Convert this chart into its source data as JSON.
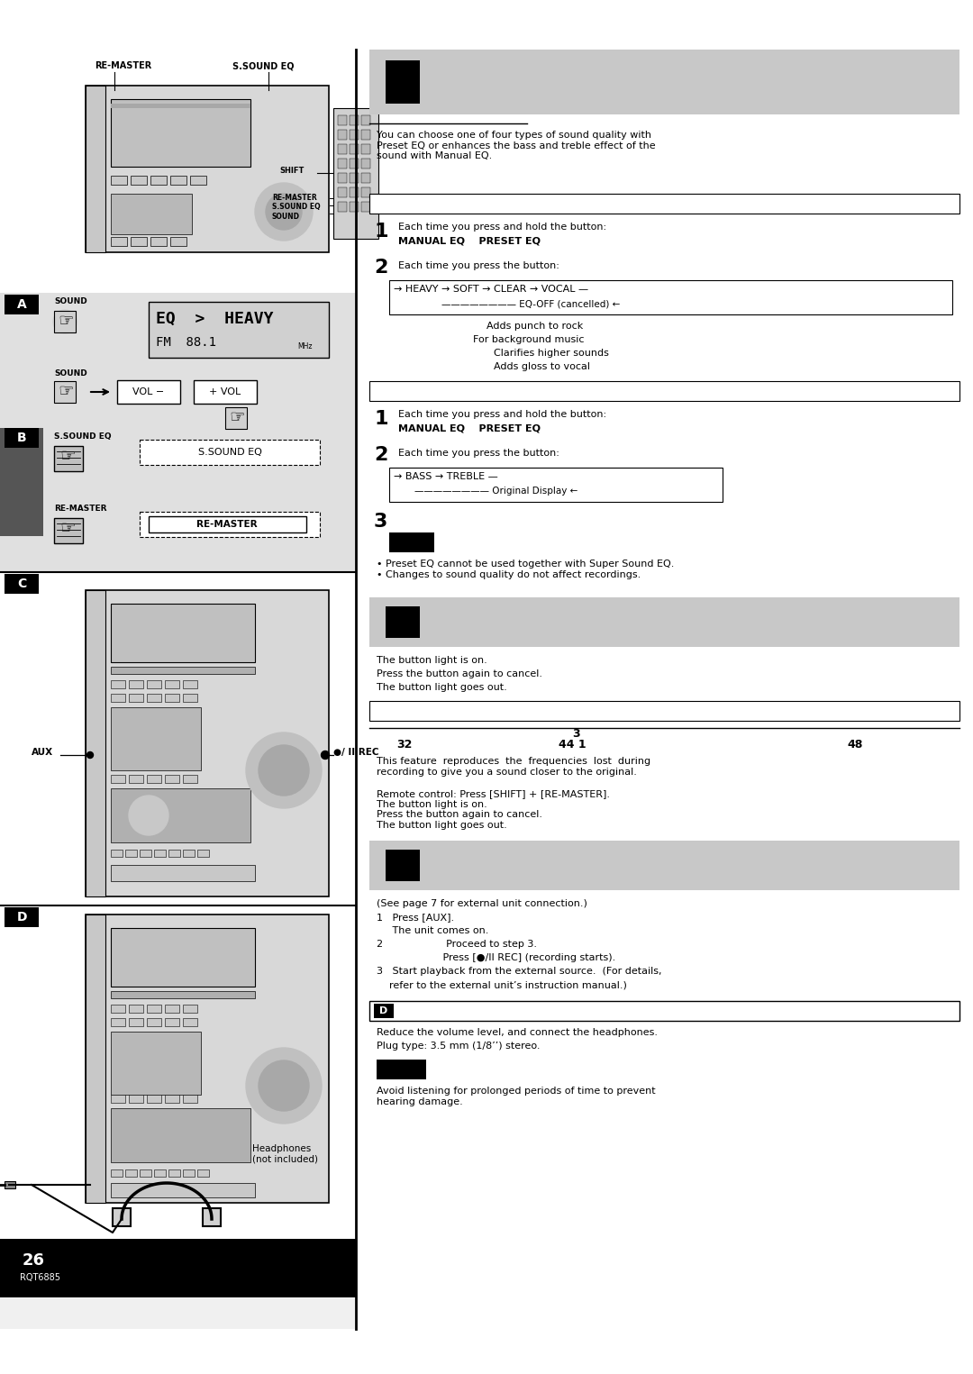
{
  "page_bg": "#ffffff",
  "left_col_bg": "#e0e0e0",
  "section_A_bg": "#e0e0e0",
  "section_B_bg": "#e0e0e0",
  "section_C_bg": "#ffffff",
  "section_D_bg": "#ffffff",
  "header_gray": "#c8c8c8",
  "unit_gray": "#d0d0d0",
  "unit_dark": "#b8b8b8",
  "unit_darkest": "#a0a0a0",
  "black": "#000000",
  "white": "#ffffff",
  "page_number": "26",
  "page_code": "RQT6885",
  "re_master_label": "RE-MASTER",
  "s_sound_eq_label": "S.SOUND EQ",
  "shift_label": "SHIFT",
  "sound_label": "SOUND",
  "aux_label": "AUX",
  "rec_label": "●/ II REC",
  "headphones_label": "Headphones\n(not included)",
  "s_sound_eq_box": "S.SOUND EQ",
  "re_master_box": "RE-MASTER",
  "right_intro": "You can choose one of four types of sound quality with\nPreset EQ or enhances the bass and treble effect of the\nsound with Manual EQ.",
  "step1_text": "Each time you press and hold the button:\nMANUAL EQ    PRESET EQ",
  "step2_text": "Each time you press the button:",
  "eq_cycle_line1": "→ HEAVY → SOFT → CLEAR → VOCAL —",
  "eq_cycle_line2": "————————— EQ-OFF (cancelled) ←",
  "eq_desc1": "Adds punch to rock",
  "eq_desc2": "For background music",
  "eq_desc3": "Clarifies higher sounds",
  "eq_desc4": "Adds gloss to vocal",
  "step1b_text": "Each time you press and hold the button:\nMANUAL EQ    PRESET EQ",
  "step2b_text": "Each time you press the button:",
  "bass_line1": "→ BASS → TREBLE —",
  "bass_line2": "————————— Original Display ←",
  "note_text": "• Preset EQ cannot be used together with Super Sound EQ.\n• Changes to sound quality do not affect recordings.",
  "remaster_desc": "The button light is on.\nPress the button again to cancel.\nThe button light goes out.",
  "freq_3": "3",
  "freq_32": "32",
  "freq_441": "44 1",
  "freq_48": "48",
  "freq_feature": "This feature  reproduces  the  frequencies  lost  during\nrecording to give you a sound closer to the original.",
  "remote_text": "Remote control: Press [SHIFT] + [RE-MASTER].\nThe button light is on.\nPress the button again to cancel.\nThe button light goes out.",
  "external_line1": "(See page 7 for external unit connection.)",
  "external_line2": "1   Press [AUX].",
  "external_line3": "     The unit comes on.",
  "external_line4": "2                    Proceed to step 3.",
  "external_line5": "                     Press [●/II REC] (recording starts).",
  "external_line6": "3   Start playback from the external source.  (For details,",
  "external_line7": "    refer to the external unit’s instruction manual.)",
  "headphones_desc1": "Reduce the volume level, and connect the headphones.",
  "headphones_desc2": "Plug type: 3.5 mm (1/8’’) stereo.",
  "warning_text": "Avoid listening for prolonged periods of time to prevent\nhearing damage."
}
